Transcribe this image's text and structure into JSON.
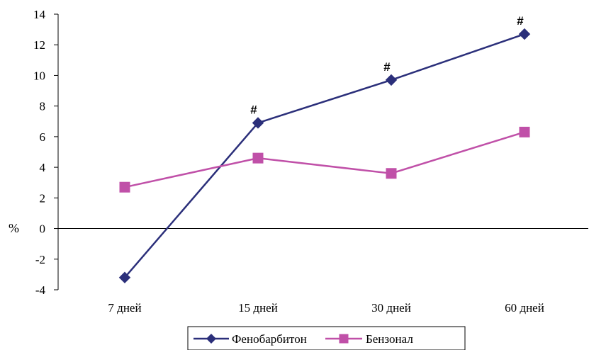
{
  "chart_data": {
    "type": "line",
    "categories": [
      "7 дней",
      "15 дней",
      "30 дней",
      "60 дней"
    ],
    "ylabel": "%",
    "ylim": [
      -4,
      14
    ],
    "yticks": [
      14,
      12,
      10,
      8,
      6,
      4,
      2,
      0,
      -2,
      -4
    ],
    "ytick_labels": [
      "14",
      "12",
      "10",
      "8",
      "6",
      "4",
      "2",
      "0",
      "-2",
      "-4"
    ],
    "grid": false,
    "legend_position": "bottom",
    "series": [
      {
        "name": "Фенобарбитон",
        "color": "#2b2f7a",
        "marker": "diamond",
        "values": [
          -3.2,
          6.9,
          9.7,
          12.7
        ],
        "annotations": [
          "",
          "#",
          "#",
          "#"
        ]
      },
      {
        "name": "Бензонал",
        "color": "#c050a8",
        "marker": "square",
        "values": [
          2.7,
          4.6,
          3.6,
          6.3
        ],
        "annotations": [
          "",
          "",
          "",
          ""
        ]
      }
    ]
  }
}
